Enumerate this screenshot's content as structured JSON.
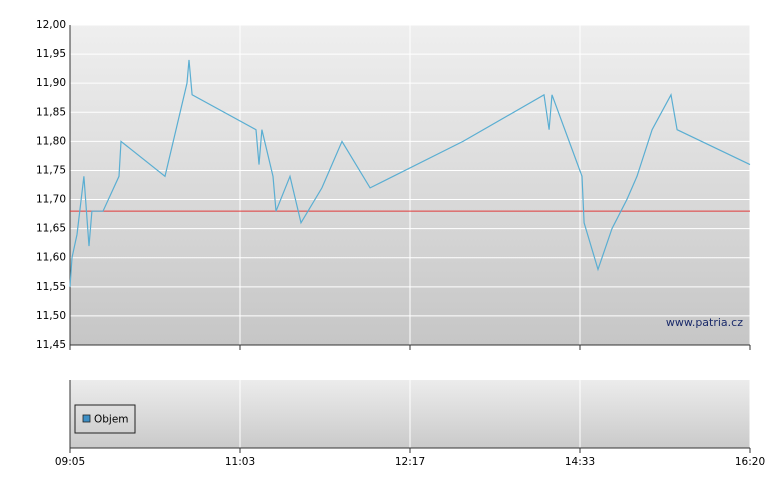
{
  "chart_data": [
    {
      "type": "line",
      "watermark": "www.patria.cz",
      "xlim": [
        0,
        4
      ],
      "ylim": [
        11.45,
        12.0
      ],
      "yticks": [
        {
          "value": 11.45,
          "label": "11,45"
        },
        {
          "value": 11.5,
          "label": "11,50"
        },
        {
          "value": 11.55,
          "label": "11,55"
        },
        {
          "value": 11.6,
          "label": "11,60"
        },
        {
          "value": 11.65,
          "label": "11,65"
        },
        {
          "value": 11.7,
          "label": "11,70"
        },
        {
          "value": 11.75,
          "label": "11,75"
        },
        {
          "value": 11.8,
          "label": "11,80"
        },
        {
          "value": 11.85,
          "label": "11,85"
        },
        {
          "value": 11.9,
          "label": "11,90"
        },
        {
          "value": 11.95,
          "label": "11,95"
        },
        {
          "value": 12.0,
          "label": "12,00"
        }
      ],
      "grid": true,
      "ref_line": 11.68,
      "ref_color": "#e03a3a",
      "x": [
        0,
        0.012,
        0.041,
        0.082,
        0.112,
        0.129,
        0.194,
        0.288,
        0.3,
        0.559,
        0.688,
        0.7,
        0.718,
        1.094,
        1.112,
        1.129,
        1.194,
        1.212,
        1.294,
        1.359,
        1.482,
        1.6,
        1.765,
        2.312,
        2.788,
        2.818,
        2.835,
        3.012,
        3.024,
        3.106,
        3.188,
        3.276,
        3.335,
        3.424,
        3.535,
        3.571,
        4
      ],
      "series": [
        {
          "color": "#5aaed2",
          "values": [
            11.55,
            11.6,
            11.64,
            11.74,
            11.62,
            11.68,
            11.68,
            11.74,
            11.8,
            11.74,
            11.9,
            11.94,
            11.88,
            11.82,
            11.76,
            11.82,
            11.74,
            11.68,
            11.74,
            11.66,
            11.72,
            11.8,
            11.72,
            11.8,
            11.88,
            11.82,
            11.88,
            11.74,
            11.66,
            11.58,
            11.65,
            11.7,
            11.74,
            11.82,
            11.88,
            11.82,
            11.76
          ]
        }
      ]
    },
    {
      "type": "bar",
      "xlim": [
        0,
        4
      ],
      "xticks": [
        {
          "value": 0,
          "label": "09:05"
        },
        {
          "value": 1,
          "label": "11:03"
        },
        {
          "value": 2,
          "label": "12:17"
        },
        {
          "value": 3,
          "label": "14:33"
        },
        {
          "value": 4,
          "label": "16:20"
        }
      ],
      "grid": true,
      "series": [
        {
          "name": "Objem",
          "color": "#3d8fc6",
          "values": []
        }
      ]
    }
  ]
}
